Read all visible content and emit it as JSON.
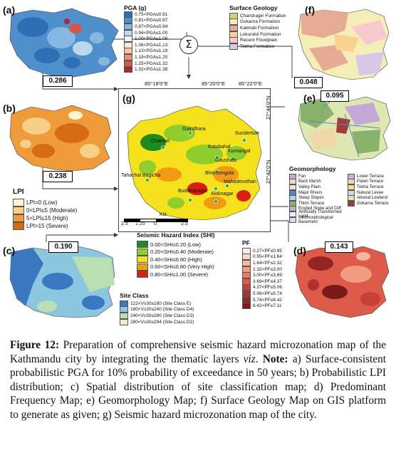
{
  "figure": {
    "panels": {
      "a": {
        "letter": "(a)",
        "value": "0.286"
      },
      "b": {
        "letter": "(b)",
        "value": "0.238"
      },
      "c": {
        "letter": "(c)",
        "value": "0.190"
      },
      "d": {
        "letter": "(d)",
        "value": "0.143"
      },
      "e": {
        "letter": "(e)",
        "value": "0.095"
      },
      "f": {
        "letter": "(f)",
        "value": "0.048"
      },
      "g": {
        "letter": "(g)"
      }
    },
    "sum_symbol": "Σ",
    "pga_legend": {
      "title": "PGA (g)",
      "items": [
        {
          "label": "0.75<PGA≤0.81",
          "color": "#2c6fb5"
        },
        {
          "label": "0.81<PGA≤0.87",
          "color": "#4f8fcc"
        },
        {
          "label": "0.87<PGA≤0.94",
          "color": "#86b7e0"
        },
        {
          "label": "0.94<PGA≤1.00",
          "color": "#bcd8ef"
        },
        {
          "label": "1.00<PGA≤1.06",
          "color": "#eef3f7"
        },
        {
          "label": "1.06<PGA≤1.13",
          "color": "#fbe7dc"
        },
        {
          "label": "1.13<PGA≤1.19",
          "color": "#f6c3a6"
        },
        {
          "label": "1.19<PGA≤1.25",
          "color": "#ec8f74"
        },
        {
          "label": "1.25<PGA≤1.32",
          "color": "#d4574d"
        },
        {
          "label": "1.32<PGA≤1.38",
          "color": "#b02634"
        }
      ]
    },
    "geology_legend": {
      "title": "Surface Geology",
      "items": [
        {
          "label": "Chandragiri Formation",
          "color": "#d3d47a"
        },
        {
          "label": "Gokarna Formation",
          "color": "#f4eeb6"
        },
        {
          "label": "Kalimati Formation",
          "color": "#e6ab94"
        },
        {
          "label": "Lokundol Formation",
          "color": "#f6d48f"
        },
        {
          "label": "Recent Floodplain",
          "color": "#f7c9cf"
        },
        {
          "label": "Tokha Formation",
          "color": "#dac6e6"
        }
      ]
    },
    "lpi_legend": {
      "title": "LPI",
      "items": [
        {
          "label": "LPI=0 (Low)",
          "color": "#fdf4d0"
        },
        {
          "label": "0<LPI≤5 (Moderate)",
          "color": "#f8cf86"
        },
        {
          "label": "5<LPI≤15 (High)",
          "color": "#ef9a3b"
        },
        {
          "label": "LPI>15 (Severe)",
          "color": "#d56b12"
        }
      ]
    },
    "shi_legend": {
      "title": "Seismic Hazard Index (SHI)",
      "items": [
        {
          "label": "0.00<SHI≤0.20 (Low)",
          "color": "#1f8a1f"
        },
        {
          "label": "0.20<SHI≤0.40 (Moderate)",
          "color": "#8fcd2c"
        },
        {
          "label": "0.40<SHI≤0.60 (High)",
          "color": "#f5e21c"
        },
        {
          "label": "0.60<SHI≤0.80 (Very High)",
          "color": "#f39a14"
        },
        {
          "label": "0.80<SHI≤1.00 (Severe)",
          "color": "#d81f12"
        }
      ]
    },
    "site_legend": {
      "title": "Site Class",
      "items": [
        {
          "label": "122<Vs30≤180 (Site Class E)",
          "color": "#3b78c2"
        },
        {
          "label": "180<Vs30≤240 (Site Class D4)",
          "color": "#8cc7e0"
        },
        {
          "label": "240<Vs30≤280 (Site Class D3)",
          "color": "#b9e0b3"
        },
        {
          "label": "280<Vs30≤294 (Site Class D2)",
          "color": "#f6e8c2"
        }
      ]
    },
    "pf_legend": {
      "title": "PF",
      "items": [
        {
          "label": "0.27<PF≤0.95",
          "color": "#fdeee6"
        },
        {
          "label": "0.95<PF≤1.64",
          "color": "#fbd7c8"
        },
        {
          "label": "1.64<PF≤2.32",
          "color": "#f7b8a2"
        },
        {
          "label": "2.32<PF≤3.00",
          "color": "#f29a82"
        },
        {
          "label": "3.00<PF≤3.69",
          "color": "#e87a64"
        },
        {
          "label": "3.69<PF≤4.37",
          "color": "#dc5b4b"
        },
        {
          "label": "4.37<PF≤5.06",
          "color": "#c8403a"
        },
        {
          "label": "5.06<PF≤5.74",
          "color": "#b0302f"
        },
        {
          "label": "5.74<PF≤6.42",
          "color": "#962423"
        },
        {
          "label": "6.42<PF≤7.11",
          "color": "#7a1a1a"
        }
      ]
    },
    "geomorph_legend": {
      "title": "Geomorphology",
      "col1": [
        {
          "label": "Fan",
          "color": "#c4a8d8"
        },
        {
          "label": "Back Marsh",
          "color": "#e9dfc3"
        },
        {
          "label": "Valley Plain",
          "color": "#efe6cf"
        },
        {
          "label": "Major Rivers",
          "color": "#4d86c5"
        },
        {
          "label": "Steep Slopes",
          "color": "#b7d0e6"
        },
        {
          "label": "Thimi Terrace",
          "color": "#8ab26a"
        },
        {
          "label": "Eroded Slope and Cliff",
          "color": "#b7b0d8"
        },
        {
          "label": "Artificially Transformed Land",
          "color": "#ececec"
        },
        {
          "label": "Geomorphological Basement",
          "color": "#e4d4e8"
        }
      ],
      "col2": [
        {
          "label": "Lower Terrace",
          "color": "#c7b3db"
        },
        {
          "label": "Patan Terrace",
          "color": "#f1d8a8"
        },
        {
          "label": "Tokha Terrace",
          "color": "#f0dd9c"
        },
        {
          "label": "Natural Levee",
          "color": "#d7d3ea"
        },
        {
          "label": "Alluvial Lowland",
          "color": "#dfe7b0"
        },
        {
          "label": "Gokarna Terrace",
          "color": "#a33b3b"
        }
      ]
    },
    "main_map": {
      "coords": {
        "top_left": "85°18'0\"E",
        "top_mid": "85°20'0\"E",
        "top_right": "85°22'0\"E",
        "side_top": "27°44'0\"N",
        "side_bot": "27°42'0\"N"
      },
      "places": [
        "Chamati",
        "Gairidhara",
        "Sundertole",
        "Kutubahal",
        "Kumangal",
        "Gaushala",
        "Tahachal Bagicha",
        "Bhimsengola",
        "Mahadevsthan",
        "Buddhanagar",
        "Aloknagar"
      ],
      "scale": {
        "ticks": [
          "2.5",
          "1.25",
          "0",
          "2.5"
        ],
        "unit": "KM"
      }
    }
  },
  "caption": {
    "label": "Figure 12:",
    "text_a": " Preparation of comprehensive seismic hazard microzonation map of the Kathmandu city by integrating the thematic layers ",
    "viz": "viz",
    "text_b": ". ",
    "note": "Note:",
    "text_c": " a) Surface-consistent probabilistic PGA for 10% probability of exceedance in 50 years; b) Probabilistic LPI distribution; c) Spatial distribution of site classification map; d) Predominant Frequency Map; e) Geomorphology Map; f) Surface Geology Map on GIS platform to generate as given; g) Seismic hazard microzonation map of the city."
  }
}
